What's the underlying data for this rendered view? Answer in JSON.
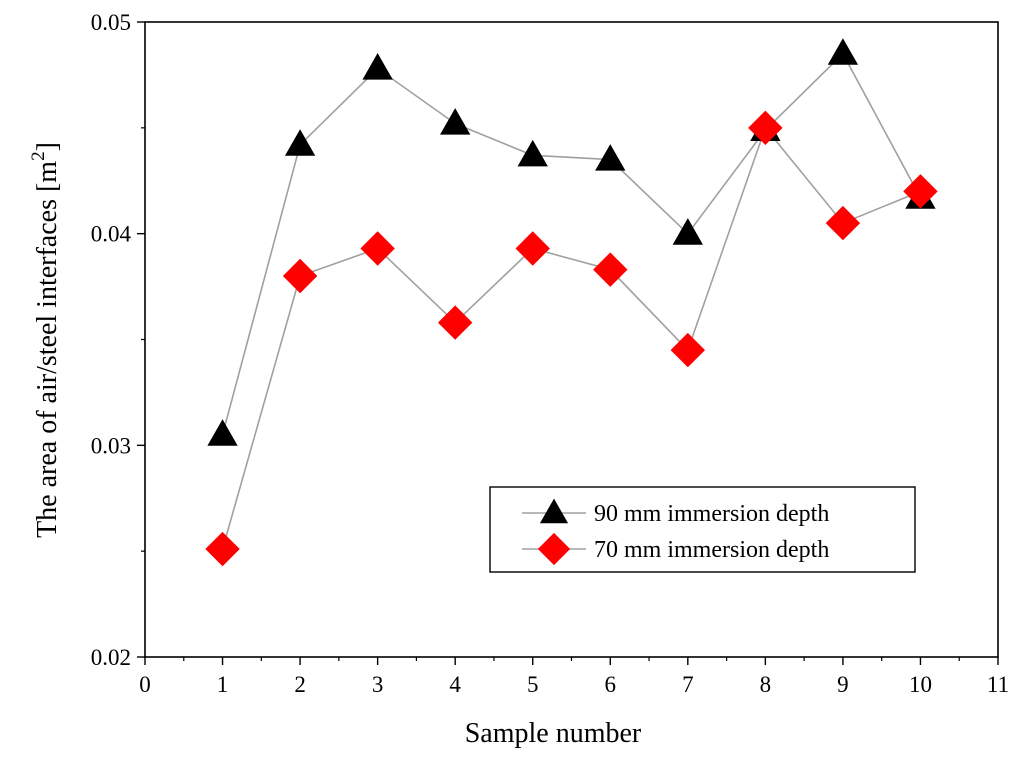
{
  "chart_data": {
    "type": "line",
    "xlabel": "Sample number",
    "ylabel": "The area of air/steel interfaces [m",
    "ylabel_superscript": "2",
    "ylabel_close": "]",
    "xlim": [
      0,
      11
    ],
    "ylim": [
      0.02,
      0.05
    ],
    "x_ticks": [
      "0",
      "1",
      "2",
      "3",
      "4",
      "5",
      "6",
      "7",
      "8",
      "9",
      "10",
      "11"
    ],
    "y_ticks": [
      "0.02",
      "0.03",
      "0.04",
      "0.05"
    ],
    "grid": false,
    "legend_position": "bottom-right",
    "x": [
      1,
      2,
      3,
      4,
      5,
      6,
      7,
      8,
      9,
      10
    ],
    "series": [
      {
        "name": "90 mm immersion depth",
        "marker": "triangle",
        "color": "#000000",
        "values": [
          0.0305,
          0.0442,
          0.0478,
          0.0452,
          0.0437,
          0.0435,
          0.04,
          0.0449,
          0.0485,
          0.0417
        ]
      },
      {
        "name": "70 mm immersion depth",
        "marker": "diamond",
        "color": "#ff0000",
        "values": [
          0.0251,
          0.038,
          0.0393,
          0.0358,
          0.0393,
          0.0383,
          0.0345,
          0.045,
          0.0405,
          0.042
        ]
      }
    ],
    "line_color": "#a0a0a0"
  }
}
